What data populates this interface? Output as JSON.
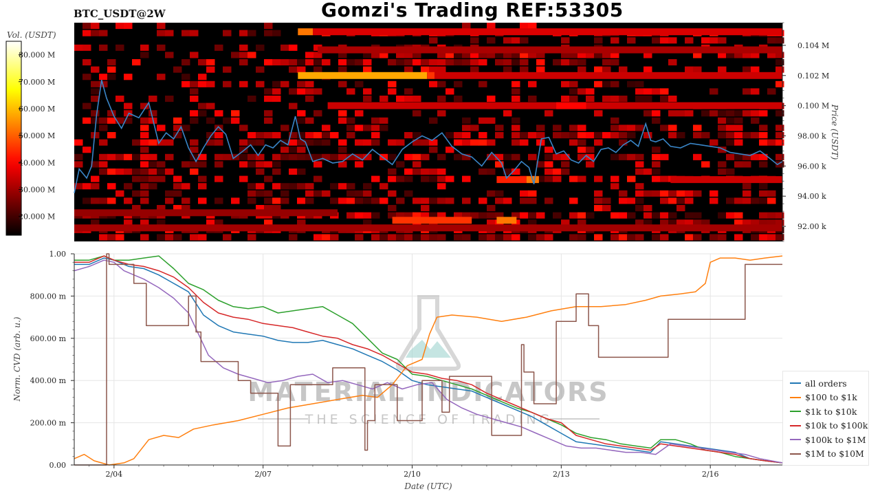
{
  "header": {
    "title": "Gomzi's Trading REF:53305",
    "pair": "BTC_USDT@2W"
  },
  "watermark": {
    "line1": "MATERIAL INDICATORS",
    "line2": "THE SCIENCE OF TRADING"
  },
  "colors": {
    "all_orders": "#1f77b4",
    "100_1k": "#ff7f0e",
    "1k_10k": "#2ca02c",
    "10k_100k": "#d62728",
    "100k_1M": "#9467bd",
    "1M_10M": "#8c564b",
    "price_line": "#3a86c8"
  },
  "chart_data": [
    {
      "type": "heatmap",
      "name": "orderbook-heatmap",
      "colorbar": {
        "label": "Vol. (USDT)",
        "ticks": [
          "20.000 M",
          "30.000 M",
          "40.000 M",
          "50.000 M",
          "60.000 M",
          "70.000 M",
          "80.000 M"
        ],
        "tick_values": [
          20,
          30,
          40,
          50,
          60,
          70,
          80
        ],
        "range": [
          13,
          85
        ],
        "colormap": "hot"
      },
      "ylabel": "Price (USDT)",
      "yticks": [
        "92.00 k",
        "94.00 k",
        "96.00 k",
        "98.00 k",
        "0.100 M",
        "0.102 M",
        "0.104 M"
      ],
      "ytick_values": [
        92000,
        94000,
        96000,
        98000,
        100000,
        102000,
        104000
      ],
      "ylim": [
        91000,
        105500
      ],
      "xlim": [
        3.2,
        17.45
      ],
      "price_series": {
        "x": [
          3.2,
          3.3,
          3.45,
          3.55,
          3.65,
          3.75,
          3.85,
          4.0,
          4.15,
          4.3,
          4.5,
          4.7,
          4.9,
          5.05,
          5.2,
          5.35,
          5.5,
          5.65,
          5.8,
          5.95,
          6.1,
          6.25,
          6.4,
          6.6,
          6.75,
          6.9,
          7.05,
          7.2,
          7.35,
          7.5,
          7.65,
          7.75,
          7.85,
          8.0,
          8.2,
          8.4,
          8.6,
          8.8,
          9.0,
          9.2,
          9.4,
          9.6,
          9.8,
          10.0,
          10.2,
          10.4,
          10.6,
          10.8,
          11.0,
          11.2,
          11.4,
          11.6,
          11.8,
          11.9,
          12.05,
          12.2,
          12.35,
          12.45,
          12.6,
          12.75,
          12.9,
          13.05,
          13.2,
          13.35,
          13.5,
          13.65,
          13.8,
          13.95,
          14.1,
          14.25,
          14.4,
          14.55,
          14.7,
          14.8,
          14.9,
          15.05,
          15.2,
          15.4,
          15.6,
          15.8,
          16.0,
          16.2,
          16.4,
          16.6,
          16.8,
          17.0,
          17.2,
          17.35,
          17.45
        ],
        "y": [
          94200,
          95800,
          95200,
          96000,
          99400,
          101700,
          100500,
          99300,
          98500,
          99500,
          99200,
          100200,
          97500,
          98200,
          97800,
          98600,
          97200,
          96300,
          97200,
          98000,
          98600,
          98100,
          96500,
          97000,
          97400,
          96700,
          97400,
          97200,
          97700,
          97400,
          99300,
          97800,
          97600,
          96300,
          96500,
          96200,
          96300,
          96800,
          96400,
          97100,
          96600,
          96100,
          97100,
          97600,
          98000,
          97700,
          98200,
          97300,
          96800,
          96600,
          96000,
          96900,
          96200,
          95200,
          95700,
          96300,
          95900,
          94800,
          97800,
          97900,
          96800,
          97000,
          96400,
          96200,
          96700,
          96300,
          97100,
          97200,
          96900,
          97400,
          97700,
          97300,
          98800,
          97700,
          97600,
          97800,
          97300,
          97200,
          97500,
          97400,
          97300,
          97200,
          96900,
          96800,
          96700,
          97000,
          96500,
          96100,
          96300
        ]
      }
    },
    {
      "type": "line",
      "name": "normalized-cvd",
      "xlabel": "Date (UTC)",
      "ylabel": "Norm. CVD (arb. u.)",
      "xticks": [
        "2/04",
        "2/07",
        "2/10",
        "2/13",
        "2/16"
      ],
      "xtick_values": [
        4,
        7,
        10,
        13,
        16
      ],
      "xlim": [
        3.2,
        17.45
      ],
      "yticks": [
        "0.00",
        "200.00 m",
        "400.00 m",
        "600.00 m",
        "800.00 m",
        "1.00"
      ],
      "ytick_values": [
        0,
        0.2,
        0.4,
        0.6,
        0.8,
        1.0
      ],
      "ylim": [
        0,
        1.0
      ],
      "grid": true,
      "legend_position": "bottom-right",
      "series": [
        {
          "name": "all orders",
          "key": "all_orders",
          "x": [
            3.2,
            3.5,
            3.8,
            4.0,
            4.3,
            4.6,
            4.9,
            5.2,
            5.5,
            5.8,
            6.1,
            6.4,
            6.7,
            7.0,
            7.3,
            7.6,
            7.9,
            8.2,
            8.5,
            8.8,
            9.1,
            9.4,
            9.7,
            10.0,
            10.3,
            10.6,
            10.9,
            11.2,
            11.5,
            11.8,
            12.1,
            12.4,
            12.7,
            13.0,
            13.3,
            13.6,
            13.9,
            14.2,
            14.5,
            14.8,
            15.0,
            15.3,
            15.6,
            15.9,
            16.2,
            16.5,
            16.8,
            17.1,
            17.45
          ],
          "y": [
            0.95,
            0.95,
            0.98,
            0.97,
            0.94,
            0.93,
            0.9,
            0.86,
            0.82,
            0.71,
            0.66,
            0.63,
            0.62,
            0.61,
            0.59,
            0.58,
            0.58,
            0.59,
            0.57,
            0.55,
            0.52,
            0.49,
            0.45,
            0.4,
            0.38,
            0.37,
            0.36,
            0.35,
            0.32,
            0.29,
            0.26,
            0.23,
            0.19,
            0.15,
            0.11,
            0.1,
            0.09,
            0.08,
            0.07,
            0.06,
            0.11,
            0.1,
            0.09,
            0.08,
            0.07,
            0.06,
            0.03,
            0.02,
            0.01
          ]
        },
        {
          "name": "$100 to $1k",
          "key": "100_1k",
          "x": [
            3.2,
            3.4,
            3.6,
            3.9,
            4.2,
            4.4,
            4.7,
            5.0,
            5.3,
            5.6,
            6.0,
            6.5,
            7.0,
            7.5,
            8.0,
            8.5,
            9.0,
            9.3,
            9.6,
            9.9,
            10.2,
            10.35,
            10.5,
            10.8,
            11.3,
            11.8,
            12.3,
            12.8,
            13.3,
            13.8,
            14.3,
            14.7,
            15.0,
            15.4,
            15.7,
            15.9,
            16.0,
            16.2,
            16.5,
            16.8,
            17.1,
            17.45
          ],
          "y": [
            0.03,
            0.05,
            0.02,
            0.0,
            0.01,
            0.03,
            0.12,
            0.14,
            0.13,
            0.17,
            0.19,
            0.21,
            0.24,
            0.27,
            0.29,
            0.31,
            0.33,
            0.32,
            0.38,
            0.47,
            0.5,
            0.62,
            0.7,
            0.71,
            0.7,
            0.68,
            0.7,
            0.73,
            0.75,
            0.75,
            0.76,
            0.78,
            0.8,
            0.81,
            0.82,
            0.86,
            0.96,
            0.98,
            0.98,
            0.97,
            0.98,
            0.99
          ]
        },
        {
          "name": "$1k to $10k",
          "key": "1k_10k",
          "x": [
            3.2,
            3.5,
            3.8,
            4.0,
            4.3,
            4.6,
            4.9,
            5.2,
            5.5,
            5.8,
            6.1,
            6.4,
            6.7,
            7.0,
            7.3,
            7.6,
            7.9,
            8.2,
            8.5,
            8.8,
            9.1,
            9.4,
            9.7,
            10.0,
            10.3,
            10.6,
            10.9,
            11.2,
            11.5,
            11.8,
            12.1,
            12.4,
            12.7,
            13.0,
            13.3,
            13.6,
            13.9,
            14.2,
            14.5,
            14.8,
            15.0,
            15.3,
            15.6,
            15.9,
            16.2,
            16.5,
            16.8,
            17.1,
            17.45
          ],
          "y": [
            0.97,
            0.97,
            0.99,
            0.97,
            0.97,
            0.98,
            0.99,
            0.93,
            0.86,
            0.83,
            0.78,
            0.75,
            0.74,
            0.75,
            0.72,
            0.73,
            0.74,
            0.75,
            0.71,
            0.67,
            0.6,
            0.53,
            0.5,
            0.43,
            0.42,
            0.4,
            0.38,
            0.36,
            0.33,
            0.3,
            0.27,
            0.25,
            0.22,
            0.19,
            0.15,
            0.13,
            0.12,
            0.1,
            0.09,
            0.08,
            0.12,
            0.12,
            0.1,
            0.07,
            0.06,
            0.04,
            0.03,
            0.02,
            0.01
          ]
        },
        {
          "name": "$10k to $100k",
          "key": "10k_100k",
          "x": [
            3.2,
            3.5,
            3.8,
            4.0,
            4.3,
            4.6,
            4.9,
            5.2,
            5.5,
            5.8,
            6.1,
            6.4,
            6.7,
            7.0,
            7.3,
            7.6,
            7.9,
            8.2,
            8.5,
            8.8,
            9.1,
            9.4,
            9.7,
            10.0,
            10.3,
            10.6,
            10.9,
            11.2,
            11.5,
            11.8,
            12.1,
            12.4,
            12.7,
            13.0,
            13.3,
            13.6,
            13.9,
            14.2,
            14.5,
            14.8,
            15.0,
            15.3,
            15.6,
            15.9,
            16.2,
            16.5,
            16.8,
            17.1,
            17.45
          ],
          "y": [
            0.96,
            0.96,
            0.99,
            0.97,
            0.95,
            0.94,
            0.92,
            0.89,
            0.84,
            0.77,
            0.72,
            0.7,
            0.69,
            0.67,
            0.66,
            0.65,
            0.63,
            0.61,
            0.6,
            0.57,
            0.55,
            0.52,
            0.48,
            0.44,
            0.43,
            0.41,
            0.4,
            0.38,
            0.34,
            0.31,
            0.28,
            0.25,
            0.22,
            0.2,
            0.14,
            0.12,
            0.1,
            0.09,
            0.08,
            0.07,
            0.1,
            0.09,
            0.08,
            0.07,
            0.06,
            0.05,
            0.03,
            0.02,
            0.01
          ]
        },
        {
          "name": "$100k to $1M",
          "key": "100k_1M",
          "x": [
            3.2,
            3.5,
            3.8,
            4.0,
            4.2,
            4.4,
            4.6,
            4.9,
            5.2,
            5.5,
            5.7,
            5.9,
            6.2,
            6.5,
            6.8,
            7.1,
            7.4,
            7.7,
            8.0,
            8.3,
            8.6,
            8.9,
            9.2,
            9.5,
            9.8,
            10.1,
            10.4,
            10.7,
            11.0,
            11.3,
            11.6,
            11.9,
            12.2,
            12.5,
            12.8,
            13.1,
            13.4,
            13.7,
            14.0,
            14.3,
            14.6,
            14.9,
            15.2,
            15.5,
            15.8,
            16.1,
            16.4,
            16.7,
            17.0,
            17.45
          ],
          "y": [
            0.92,
            0.94,
            0.97,
            0.96,
            0.92,
            0.9,
            0.88,
            0.84,
            0.79,
            0.72,
            0.62,
            0.52,
            0.46,
            0.43,
            0.41,
            0.39,
            0.4,
            0.42,
            0.43,
            0.39,
            0.4,
            0.38,
            0.36,
            0.39,
            0.36,
            0.38,
            0.39,
            0.31,
            0.27,
            0.24,
            0.22,
            0.2,
            0.18,
            0.15,
            0.12,
            0.09,
            0.08,
            0.08,
            0.07,
            0.06,
            0.06,
            0.05,
            0.1,
            0.09,
            0.08,
            0.07,
            0.06,
            0.05,
            0.03,
            0.01
          ]
        },
        {
          "name": "$1M to $10M",
          "key": "1M_10M",
          "x": [
            3.2,
            3.85,
            3.85,
            3.9,
            3.9,
            4.4,
            4.4,
            4.65,
            4.65,
            5.5,
            5.5,
            5.65,
            5.65,
            5.75,
            5.75,
            6.5,
            6.5,
            6.75,
            6.75,
            7.3,
            7.3,
            7.55,
            7.55,
            8.4,
            8.4,
            9.05,
            9.05,
            9.1,
            9.1,
            9.25,
            9.25,
            9.7,
            9.7,
            10.2,
            10.2,
            10.6,
            10.6,
            10.75,
            10.75,
            11.6,
            11.6,
            12.2,
            12.2,
            12.25,
            12.25,
            12.35,
            12.35,
            12.45,
            12.45,
            12.9,
            12.9,
            13.3,
            13.3,
            13.55,
            13.55,
            13.75,
            13.75,
            14.8,
            14.8,
            15.15,
            15.15,
            16.7,
            16.7,
            17.45
          ],
          "y": [
            0.0,
            0.0,
            1.0,
            1.0,
            0.95,
            0.95,
            0.86,
            0.86,
            0.66,
            0.66,
            0.8,
            0.8,
            0.63,
            0.63,
            0.49,
            0.49,
            0.4,
            0.4,
            0.34,
            0.34,
            0.09,
            0.09,
            0.38,
            0.38,
            0.46,
            0.46,
            0.07,
            0.07,
            0.21,
            0.21,
            0.38,
            0.38,
            0.21,
            0.21,
            0.4,
            0.4,
            0.25,
            0.25,
            0.42,
            0.42,
            0.14,
            0.14,
            0.57,
            0.57,
            0.44,
            0.44,
            0.44,
            0.44,
            0.29,
            0.29,
            0.68,
            0.68,
            0.81,
            0.81,
            0.66,
            0.66,
            0.51,
            0.51,
            0.51,
            0.51,
            0.69,
            0.69,
            0.95,
            0.95
          ]
        }
      ]
    }
  ]
}
